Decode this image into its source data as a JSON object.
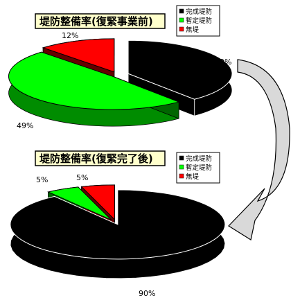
{
  "chart_data": [
    {
      "type": "pie",
      "title": "堤防整備率(復緊事業前)",
      "categories": [
        "完成堤防",
        "暫定堤防",
        "無堤"
      ],
      "values": [
        39,
        49,
        12
      ],
      "value_labels": [
        "39%",
        "49%",
        "12%"
      ],
      "colors": [
        "#000000",
        "#00ff00",
        "#ff0000"
      ],
      "legend": "top-right",
      "exploded": true,
      "three_d": true
    },
    {
      "type": "pie",
      "title": "堤防整備率(復緊完了後)",
      "categories": [
        "完成堤防",
        "暫定堤防",
        "無堤"
      ],
      "values": [
        90,
        5,
        5
      ],
      "value_labels": [
        "90%",
        "5%",
        "5%"
      ],
      "colors": [
        "#000000",
        "#00ff00",
        "#ff0000"
      ],
      "legend": "top-right",
      "exploded": true,
      "three_d": true
    }
  ],
  "decoration": {
    "arrow_color": "#d9d9d9",
    "arrow_name": "transition-arrow"
  }
}
